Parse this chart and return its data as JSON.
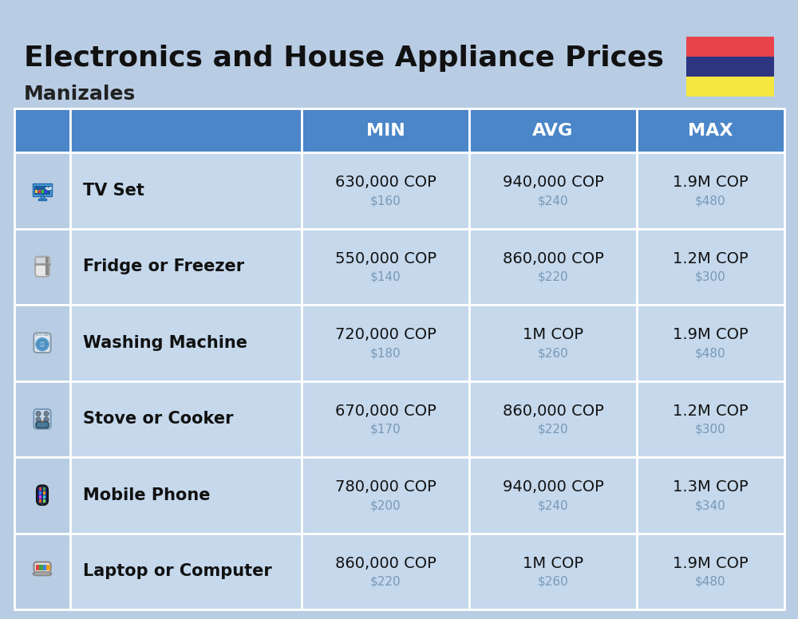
{
  "title": "Electronics and House Appliance Prices",
  "subtitle": "Manizales",
  "background_color": "#b8cce4",
  "header_bg_color": "#4a86c8",
  "header_text_color": "#ffffff",
  "row_bg_color": "#c5d8ec",
  "icon_col_color": "#b8cce4",
  "columns": [
    "",
    "",
    "MIN",
    "AVG",
    "MAX"
  ],
  "rows": [
    {
      "label": "TV Set",
      "min_cop": "630,000 COP",
      "min_usd": "$160",
      "avg_cop": "940,000 COP",
      "avg_usd": "$240",
      "max_cop": "1.9M COP",
      "max_usd": "$480"
    },
    {
      "label": "Fridge or Freezer",
      "min_cop": "550,000 COP",
      "min_usd": "$140",
      "avg_cop": "860,000 COP",
      "avg_usd": "$220",
      "max_cop": "1.2M COP",
      "max_usd": "$300"
    },
    {
      "label": "Washing Machine",
      "min_cop": "720,000 COP",
      "min_usd": "$180",
      "avg_cop": "1M COP",
      "avg_usd": "$260",
      "max_cop": "1.9M COP",
      "max_usd": "$480"
    },
    {
      "label": "Stove or Cooker",
      "min_cop": "670,000 COP",
      "min_usd": "$170",
      "avg_cop": "860,000 COP",
      "avg_usd": "$220",
      "max_cop": "1.2M COP",
      "max_usd": "$300"
    },
    {
      "label": "Mobile Phone",
      "min_cop": "780,000 COP",
      "min_usd": "$200",
      "avg_cop": "940,000 COP",
      "avg_usd": "$240",
      "max_cop": "1.3M COP",
      "max_usd": "$340"
    },
    {
      "label": "Laptop or Computer",
      "min_cop": "860,000 COP",
      "min_usd": "$220",
      "avg_cop": "1M COP",
      "avg_usd": "$260",
      "max_cop": "1.9M COP",
      "max_usd": "$480"
    }
  ],
  "flag_yellow": "#f5e642",
  "flag_blue": "#2d3580",
  "flag_red": "#e8424a",
  "title_fontsize": 26,
  "subtitle_fontsize": 18,
  "header_fontsize": 16,
  "label_fontsize": 15,
  "value_fontsize": 14,
  "usd_fontsize": 11,
  "usd_color": "#7899b8"
}
